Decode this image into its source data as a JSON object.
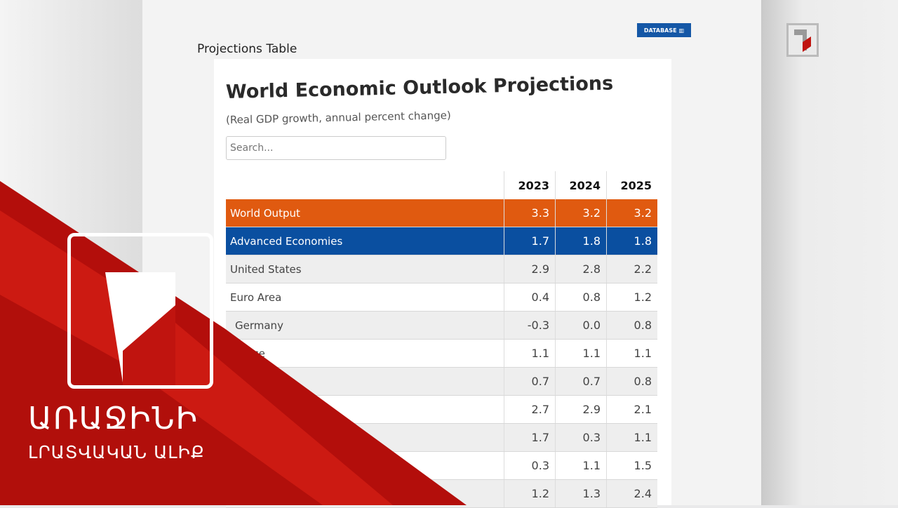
{
  "page": {
    "title": "Projections Table",
    "badge": "DATABASE",
    "badge_icon": "bar-chart-icon"
  },
  "card": {
    "title": "World Economic Outlook Projections",
    "subtitle": "(Real GDP growth, annual percent change)",
    "search_placeholder": "Search..."
  },
  "table": {
    "columns": [
      "2023",
      "2024",
      "2025"
    ],
    "rows": [
      {
        "label": "World Output",
        "values": [
          "3.3",
          "3.2",
          "3.2"
        ],
        "style": "orange"
      },
      {
        "label": "Advanced Economies",
        "values": [
          "1.7",
          "1.8",
          "1.8"
        ],
        "style": "blue"
      },
      {
        "label": "United States",
        "values": [
          "2.9",
          "2.8",
          "2.2"
        ]
      },
      {
        "label": "Euro Area",
        "values": [
          "0.4",
          "0.8",
          "1.2"
        ]
      },
      {
        "label": "Germany",
        "values": [
          "-0.3",
          "0.0",
          "0.8"
        ]
      },
      {
        "label": "France",
        "values": [
          "1.1",
          "1.1",
          "1.1"
        ]
      },
      {
        "label": "",
        "values": [
          "0.7",
          "0.7",
          "0.8"
        ]
      },
      {
        "label": "",
        "values": [
          "2.7",
          "2.9",
          "2.1"
        ]
      },
      {
        "label": "",
        "values": [
          "1.7",
          "0.3",
          "1.1"
        ]
      },
      {
        "label": "",
        "values": [
          "0.3",
          "1.1",
          "1.5"
        ]
      },
      {
        "label": "",
        "values": [
          "1.2",
          "1.3",
          "2.4"
        ]
      }
    ]
  },
  "broadcaster": {
    "line1": "ԱՌԱՋԻՆԻ",
    "line2": "ԼՐԱՏՎԱԿԱՆ ԱԼԻՔ",
    "color": "#c0140f"
  }
}
